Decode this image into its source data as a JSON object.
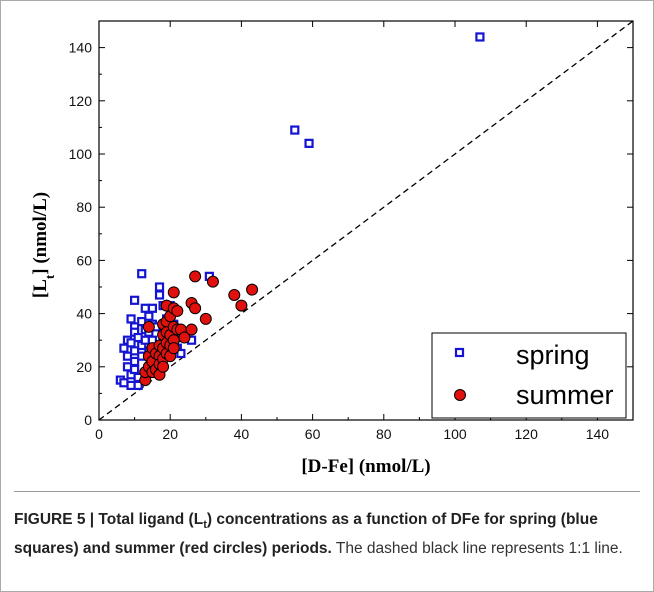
{
  "chart_data": {
    "type": "scatter",
    "xlabel_main": "[D-Fe]",
    "xlabel_unit": " (nmol/L)",
    "ylabel_pre": "[L",
    "ylabel_sub": "t",
    "ylabel_post": "] (nmol/L)",
    "xlim": [
      0,
      150
    ],
    "ylim": [
      0,
      150
    ],
    "xticks": [
      0,
      20,
      40,
      60,
      80,
      100,
      120,
      140
    ],
    "yticks": [
      0,
      20,
      40,
      60,
      80,
      100,
      120,
      140
    ],
    "reference_line": "1:1 dashed",
    "legend_position": "bottom-right",
    "series": [
      {
        "name": "spring",
        "marker": "square-open",
        "color": "#1414d2",
        "points": [
          [
            6,
            15
          ],
          [
            7,
            27
          ],
          [
            7,
            14
          ],
          [
            8,
            20
          ],
          [
            8,
            24
          ],
          [
            8,
            30
          ],
          [
            9,
            38
          ],
          [
            9,
            29
          ],
          [
            9,
            17
          ],
          [
            9,
            13
          ],
          [
            10,
            45
          ],
          [
            10,
            35
          ],
          [
            10,
            33
          ],
          [
            10,
            26
          ],
          [
            10,
            22
          ],
          [
            10,
            19
          ],
          [
            11,
            31
          ],
          [
            11,
            16
          ],
          [
            11,
            13
          ],
          [
            12,
            55
          ],
          [
            12,
            37
          ],
          [
            12,
            28
          ],
          [
            12,
            24
          ],
          [
            13,
            42
          ],
          [
            13,
            34
          ],
          [
            13,
            30
          ],
          [
            14,
            39
          ],
          [
            14,
            33
          ],
          [
            14,
            26
          ],
          [
            15,
            42
          ],
          [
            15,
            36
          ],
          [
            15,
            30
          ],
          [
            16,
            35
          ],
          [
            17,
            50
          ],
          [
            17,
            47
          ],
          [
            18,
            43
          ],
          [
            18,
            31
          ],
          [
            19,
            38
          ],
          [
            20,
            43
          ],
          [
            21,
            41
          ],
          [
            21,
            36
          ],
          [
            22,
            27
          ],
          [
            23,
            31
          ],
          [
            23,
            25
          ],
          [
            26,
            30
          ],
          [
            31,
            54
          ],
          [
            55,
            109
          ],
          [
            59,
            104
          ],
          [
            107,
            144
          ]
        ]
      },
      {
        "name": "summer",
        "marker": "circle-filled",
        "color": "#e0100c",
        "points": [
          [
            13,
            15
          ],
          [
            13,
            18
          ],
          [
            14,
            35
          ],
          [
            14,
            24
          ],
          [
            14,
            20
          ],
          [
            15,
            27
          ],
          [
            15,
            22
          ],
          [
            15,
            18
          ],
          [
            16,
            25
          ],
          [
            16,
            19
          ],
          [
            17,
            28
          ],
          [
            17,
            24
          ],
          [
            17,
            21
          ],
          [
            17,
            17
          ],
          [
            18,
            36
          ],
          [
            18,
            32
          ],
          [
            18,
            27
          ],
          [
            18,
            23
          ],
          [
            18,
            20
          ],
          [
            19,
            43
          ],
          [
            19,
            37
          ],
          [
            19,
            33
          ],
          [
            19,
            29
          ],
          [
            19,
            25
          ],
          [
            20,
            39
          ],
          [
            20,
            32
          ],
          [
            20,
            28
          ],
          [
            20,
            24
          ],
          [
            21,
            48
          ],
          [
            21,
            42
          ],
          [
            21,
            35
          ],
          [
            21,
            30
          ],
          [
            21,
            27
          ],
          [
            22,
            41
          ],
          [
            22,
            34
          ],
          [
            23,
            34
          ],
          [
            24,
            31
          ],
          [
            26,
            44
          ],
          [
            26,
            34
          ],
          [
            27,
            42
          ],
          [
            27,
            54
          ],
          [
            30,
            38
          ],
          [
            32,
            52
          ],
          [
            38,
            47
          ],
          [
            40,
            43
          ],
          [
            43,
            49
          ]
        ]
      }
    ]
  },
  "caption": {
    "bold": "FIGURE 5 | Total ligand (L",
    "bold_sub": "t",
    "bold_rest": ") concentrations as a function of DFe for spring (blue squares) and summer (red circles) periods.",
    "normal": " The dashed black line represents 1:1 line."
  }
}
